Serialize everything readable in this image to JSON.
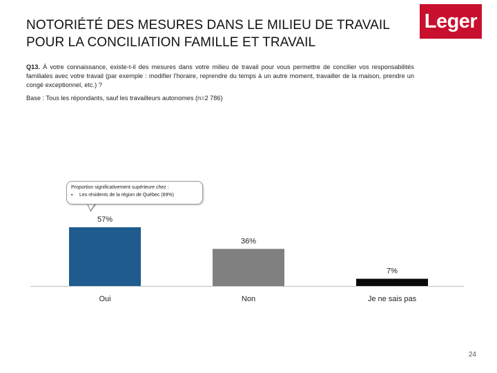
{
  "header": {
    "title_line1": "NOTORIÉTÉ DES MESURES DANS LE MILIEU DE TRAVAIL",
    "title_line2": "POUR LA CONCILIATION FAMILLE ET TRAVAIL",
    "logo_text": "Leger"
  },
  "question": {
    "number": "Q13.",
    "text": "À votre connaissance, existe-t-il des mesures dans votre milieu de travail pour vous permettre de concilier vos responsabilités familiales avec votre travail (par exemple : modifier l'horaire, reprendre du temps à un autre moment, travailler de la maison, prendre un congé exceptionnel, etc.) ?",
    "base": "Base : Tous les répondants, sauf les travailleurs autonomes (n=2 786)"
  },
  "callout": {
    "heading": "Proportion significativement supérieure chez :",
    "item": "Les résidents de la région de Québec (69%)"
  },
  "chart_data": {
    "type": "bar",
    "categories": [
      "Oui",
      "Non",
      "Je ne sais pas"
    ],
    "values": [
      57,
      36,
      7
    ],
    "value_labels": [
      "57%",
      "36%",
      "7%"
    ],
    "colors": [
      "#1f5b8e",
      "#808080",
      "#0a0a0a"
    ],
    "title": "",
    "xlabel": "",
    "ylabel": "",
    "ylim": [
      0,
      57
    ],
    "grid": false,
    "legend": "none"
  },
  "footer": {
    "page_number": "24"
  }
}
